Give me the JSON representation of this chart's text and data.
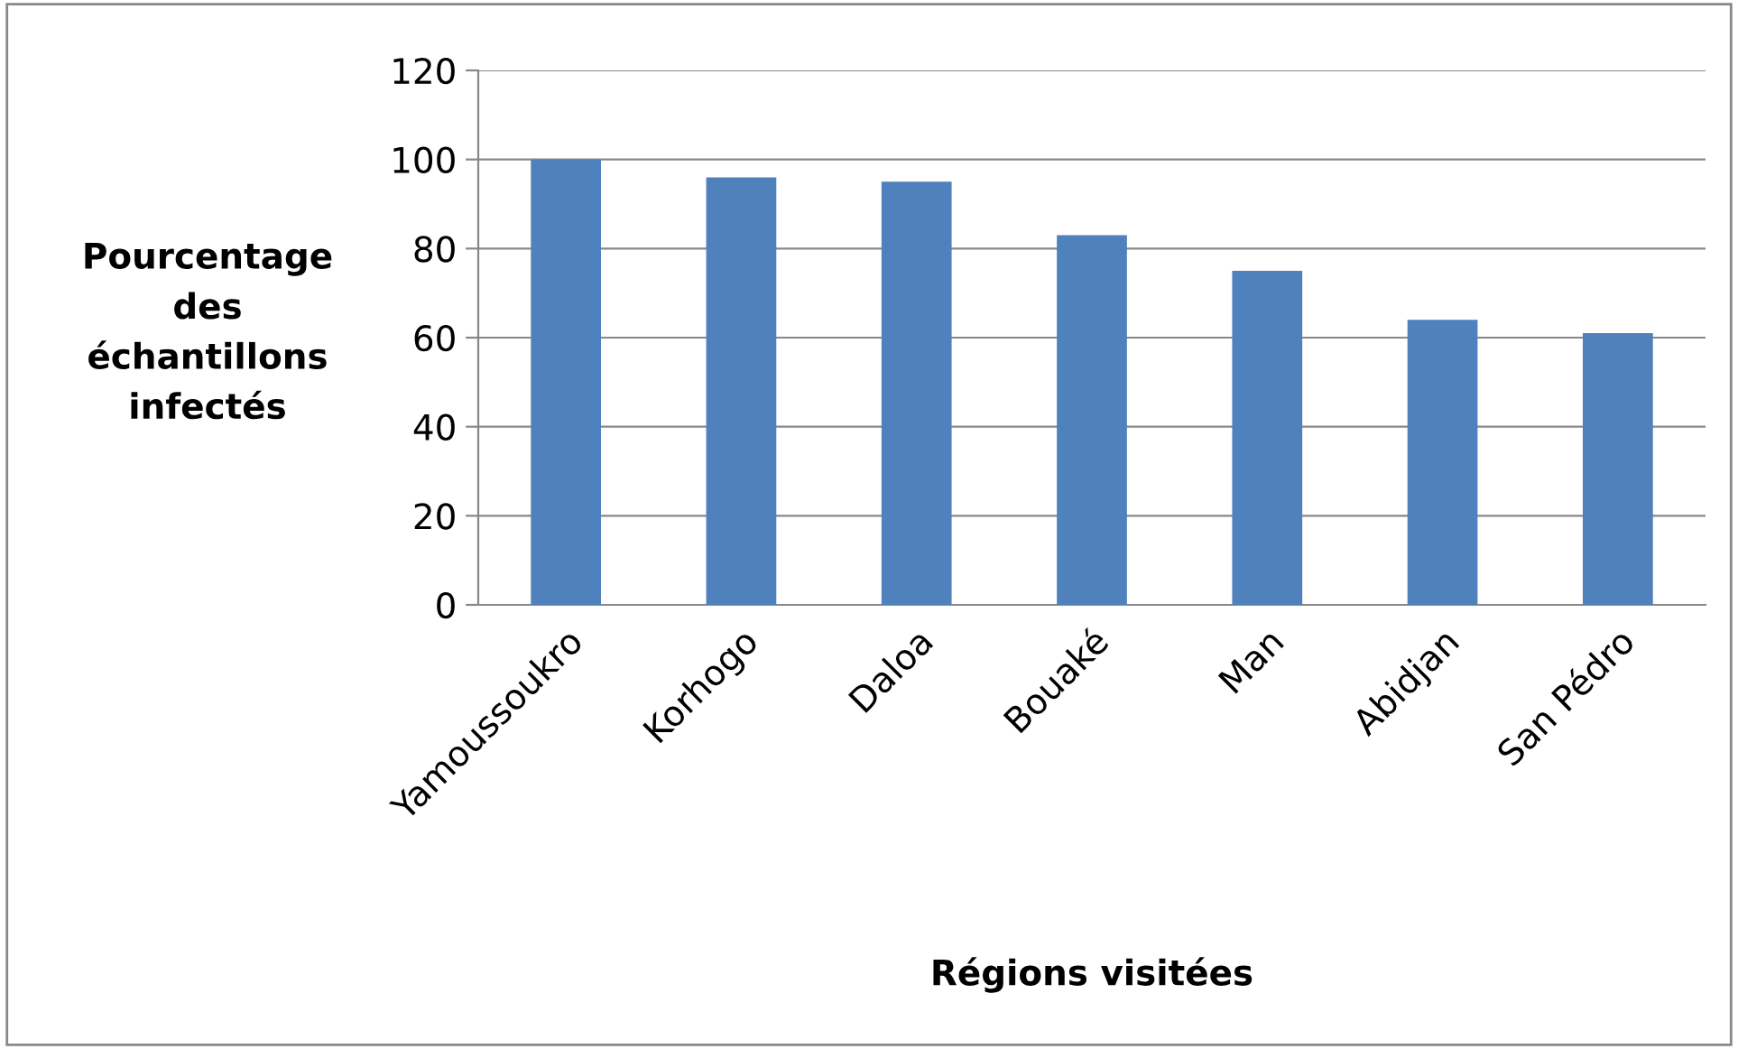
{
  "chart_data": {
    "type": "bar",
    "xlabel": "Régions visitées",
    "ylabel": "Pourcentage\ndes\néchantillons\ninfectés",
    "categories": [
      "Yamoussoukro",
      "Korhogo",
      "Daloa",
      "Bouaké",
      "Man",
      "Abidjan",
      "San Pédro"
    ],
    "values": [
      100,
      96,
      95,
      83,
      75,
      64,
      61
    ],
    "color": "#4f81bd",
    "ylim": [
      0,
      120
    ],
    "yticks": [
      0,
      20,
      40,
      60,
      80,
      100,
      120
    ],
    "grid": "y",
    "legend": false
  }
}
